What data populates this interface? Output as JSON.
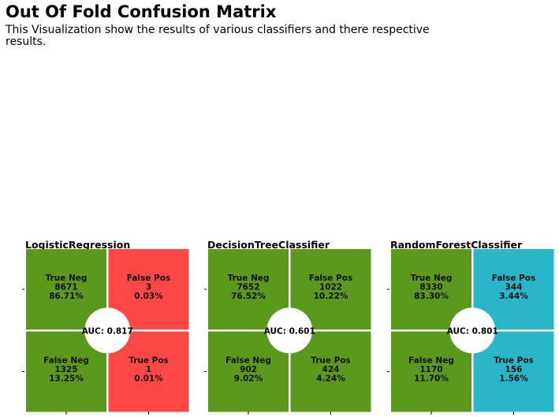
{
  "header": {
    "title": "Out Of Fold Confusion Matrix",
    "subtitle": "This Visualization show the results of various classifiers and there respective results."
  },
  "colors": {
    "neutral_cell": "#5a991b",
    "logistic_highlight": "#ff4747",
    "forest_highlight": "#29b6c8",
    "center_circle": "#ffffff"
  },
  "chart_data": [
    {
      "type": "heatmap",
      "title": "LogisticRegression",
      "auc": "AUC: 0.817",
      "highlight_color": "#ff4747",
      "cells": [
        {
          "label": "True Neg",
          "count": "8671",
          "percent": "86.71%"
        },
        {
          "label": "False Pos",
          "count": "3",
          "percent": "0.03%"
        },
        {
          "label": "False Neg",
          "count": "1325",
          "percent": "13.25%"
        },
        {
          "label": "True Pos",
          "count": "1",
          "percent": "0.01%"
        }
      ]
    },
    {
      "type": "heatmap",
      "title": "DecisionTreeClassifier",
      "auc": "AUC: 0.601",
      "highlight_color": "#5a991b",
      "cells": [
        {
          "label": "True Neg",
          "count": "7652",
          "percent": "76.52%"
        },
        {
          "label": "False Pos",
          "count": "1022",
          "percent": "10.22%"
        },
        {
          "label": "False Neg",
          "count": "902",
          "percent": "9.02%"
        },
        {
          "label": "True Pos",
          "count": "424",
          "percent": "4.24%"
        }
      ]
    },
    {
      "type": "heatmap",
      "title": "RandomForestClassifier",
      "auc": "AUC: 0.801",
      "highlight_color": "#29b6c8",
      "cells": [
        {
          "label": "True Neg",
          "count": "8330",
          "percent": "83.30%"
        },
        {
          "label": "False Pos",
          "count": "344",
          "percent": "3.44%"
        },
        {
          "label": "False Neg",
          "count": "1170",
          "percent": "11.70%"
        },
        {
          "label": "True Pos",
          "count": "156",
          "percent": "1.56%"
        }
      ]
    }
  ]
}
